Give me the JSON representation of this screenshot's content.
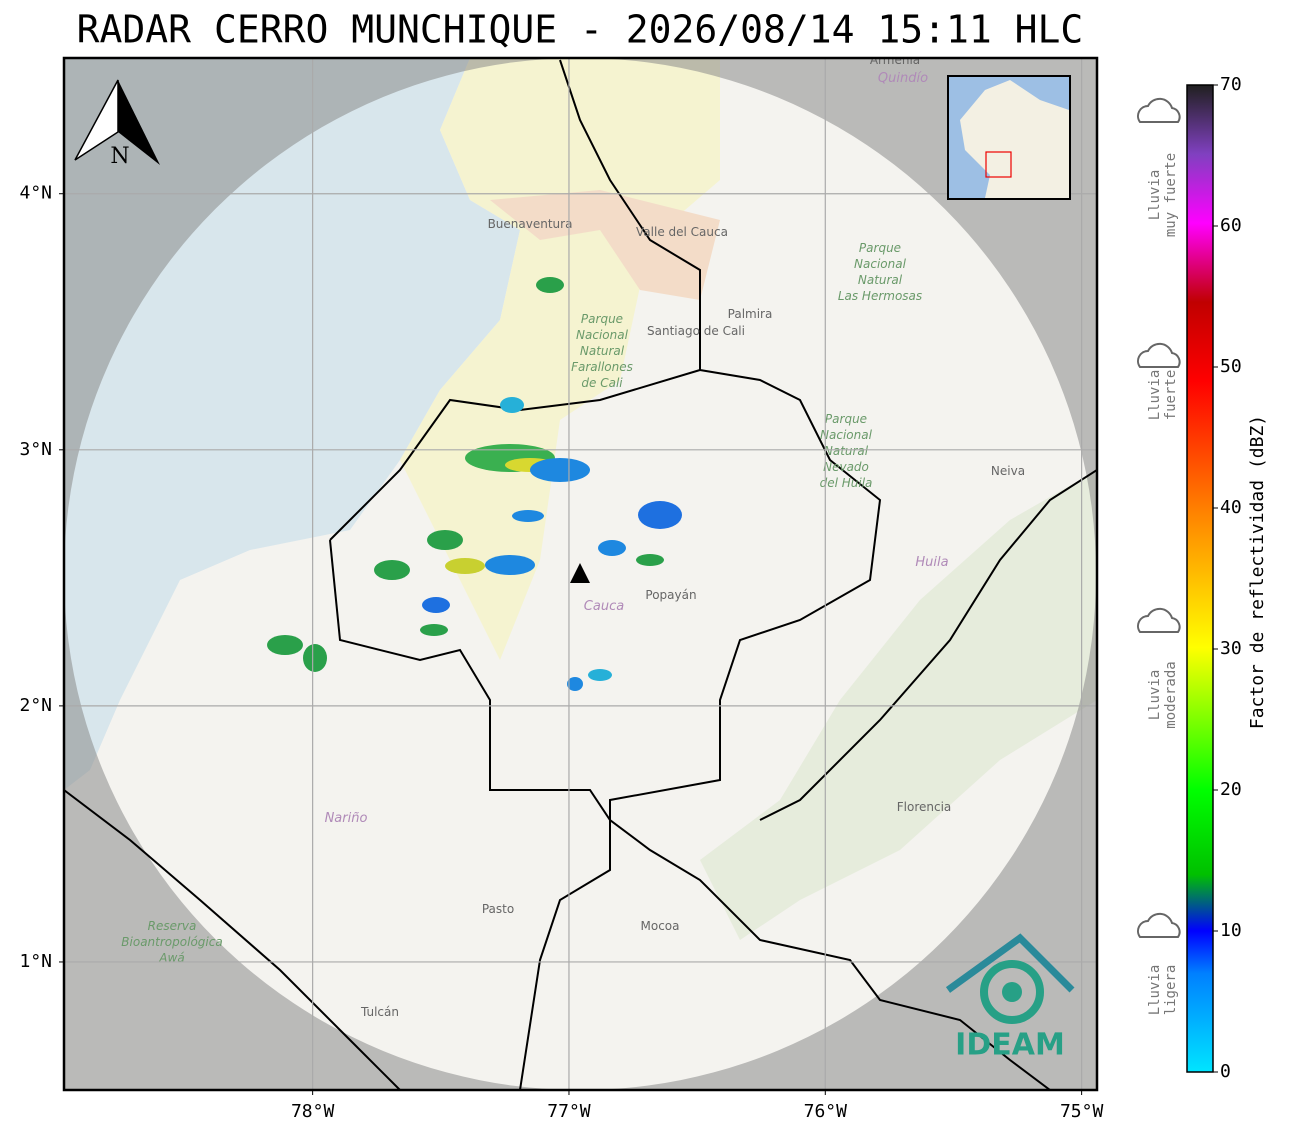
{
  "header": {
    "title": "RADAR CERRO MUNCHIQUE - 2026/08/14 15:11 HLC"
  },
  "map": {
    "xlim": [
      -78.97,
      -74.94
    ],
    "ylim": [
      0.5,
      4.53
    ],
    "xticks": [
      {
        "value": -78,
        "label": "78°W"
      },
      {
        "value": -77,
        "label": "77°W"
      },
      {
        "value": -76,
        "label": "76°W"
      },
      {
        "value": -75,
        "label": "75°W"
      }
    ],
    "yticks": [
      {
        "value": 1,
        "label": "1°N"
      },
      {
        "value": 2,
        "label": "2°N"
      },
      {
        "value": 3,
        "label": "3°N"
      },
      {
        "value": 4,
        "label": "4°N"
      }
    ],
    "grid": true,
    "north": "N",
    "logo": "IDEAM",
    "places": [
      "Buenaventura",
      "Valle del Cauca",
      "Palmira",
      "Santiago de Cali",
      "Neiva",
      "Huila",
      "Cauca",
      "Popayán",
      "Nariño",
      "Florencia",
      "Pasto",
      "Mocoa",
      "Tulcán",
      "Armenia",
      "Quindío"
    ],
    "parks": [
      [
        "Parque",
        "Nacional",
        "Natural",
        "Farallones",
        "de Cali"
      ],
      [
        "Parque",
        "Nacional",
        "Natural",
        "Las Hermosas"
      ],
      [
        "Parque",
        "Nacional",
        "Natural",
        "Nevado",
        "del Huila"
      ],
      [
        "Reserva",
        "Bioantropológica",
        "Awá"
      ]
    ]
  },
  "colorbar": {
    "label": "Factor de reflectividad (dBZ)",
    "lim": [
      0,
      70
    ],
    "ticks": [
      0,
      10,
      20,
      30,
      40,
      50,
      60,
      70
    ]
  },
  "rain_labels": [
    {
      "lines": [
        "Lluvia",
        "muy fuerte"
      ]
    },
    {
      "lines": [
        "Lluvia",
        "fuerte"
      ]
    },
    {
      "lines": [
        "Lluvia",
        "moderada"
      ]
    },
    {
      "lines": [
        "Lluvia",
        "ligera"
      ]
    }
  ]
}
